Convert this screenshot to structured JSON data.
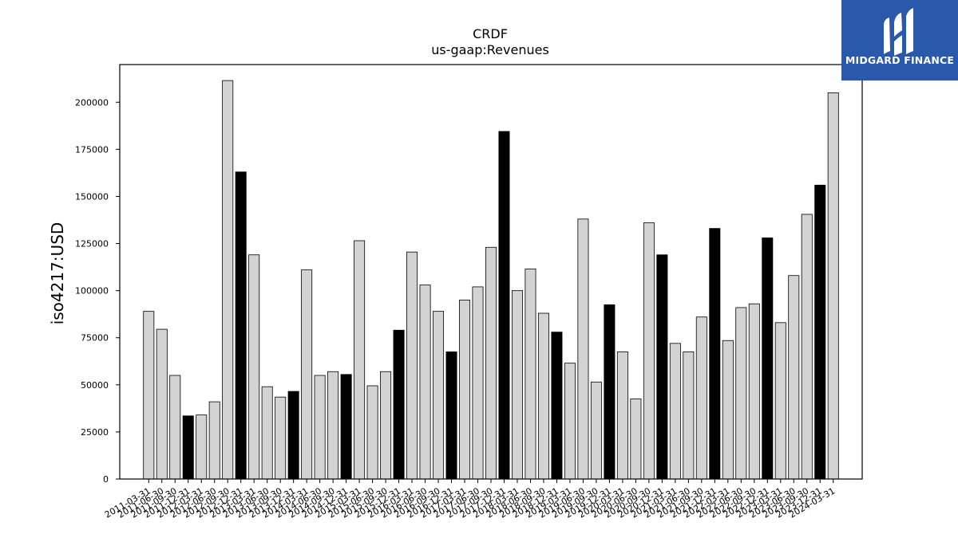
{
  "logo": {
    "text": "MIDGARD FINANCE",
    "icon": "midgard-logo-icon",
    "color": "#2a59ab"
  },
  "chart_data": {
    "type": "bar",
    "title": "CRDF",
    "subtitle": "us-gaap:Revenues",
    "xlabel": "",
    "ylabel": "iso4217:USD",
    "ylim": [
      0,
      220000
    ],
    "yticks": [
      0,
      25000,
      50000,
      75000,
      100000,
      125000,
      150000,
      175000,
      200000
    ],
    "grid": false,
    "colors": {
      "quarter": "#d3d3d3",
      "year_end": "#000000",
      "edge": "#000000"
    },
    "categories": [
      "2011-03-31",
      "2011-06-30",
      "2011-09-30",
      "2011-12-31",
      "2012-03-31",
      "2012-06-30",
      "2012-09-30",
      "2012-12-31",
      "2013-03-31",
      "2013-06-30",
      "2013-09-30",
      "2013-12-31",
      "2014-03-31",
      "2014-06-30",
      "2014-09-30",
      "2014-12-31",
      "2015-03-31",
      "2015-06-30",
      "2015-09-30",
      "2015-12-31",
      "2016-03-31",
      "2016-06-30",
      "2016-09-30",
      "2016-12-31",
      "2017-03-31",
      "2017-06-30",
      "2017-09-30",
      "2017-12-31",
      "2018-03-31",
      "2018-06-30",
      "2018-09-30",
      "2018-12-31",
      "2019-03-31",
      "2019-06-30",
      "2019-09-30",
      "2019-12-31",
      "2020-03-31",
      "2020-06-30",
      "2020-09-30",
      "2020-12-31",
      "2021-03-31",
      "2021-06-30",
      "2021-09-30",
      "2021-12-31",
      "2022-03-31",
      "2022-06-30",
      "2022-09-30",
      "2022-12-31",
      "2023-03-31",
      "2023-06-30",
      "2023-09-30",
      "2023-12-31",
      "2024-03-31"
    ],
    "tick_labels": [
      "2011-03-31",
      "2011-06-30",
      "2011-09-30",
      "2011-12-31",
      "2012-03-31",
      "2012-06-30",
      "2012-09-30",
      "2012-12-31",
      "2013-03-31",
      "2013-06-30",
      "2013-09-30",
      "2013-12-31",
      "2014-03-31",
      "2014-06-30",
      "2014-09-30",
      "2014-12-31",
      "2015-03-31",
      "2015-06-30",
      "2015-09-30",
      "2015-12-31",
      "2016-03-31",
      "2016-06-30",
      "2016-09-30",
      "2016-12-31",
      "2017-03-31",
      "2017-06-30",
      "2017-09-30",
      "2017-12-31",
      "2018-03-31",
      "2018-06-30",
      "2018-09-30",
      "2018-12-31",
      "2019-03-31",
      "2019-06-30",
      "2019-09-30",
      "2019-12-31",
      "2020-03-31",
      "2020-06-30",
      "2020-09-30",
      "2020-12-31",
      "2021-03-31",
      "2021-06-30",
      "2021-09-30",
      "2021-12-31",
      "2022-03-31",
      "2022-06-30",
      "2022-09-30",
      "2022-12-31",
      "2023-03-31",
      "2023-06-30",
      "2023-09-30",
      "2023-12-31",
      "2024-03-31"
    ],
    "values": [
      89000,
      79500,
      55000,
      33500,
      34000,
      41000,
      211500,
      163000,
      119000,
      49000,
      43500,
      46500,
      111000,
      55000,
      57000,
      55500,
      126500,
      49500,
      57000,
      79000,
      120500,
      103000,
      89000,
      67500,
      95000,
      102000,
      123000,
      184500,
      100000,
      111500,
      88000,
      78000,
      61500,
      138000,
      51500,
      92500,
      67500,
      42500,
      136000,
      119000,
      72000,
      67500,
      86000,
      133000,
      73500,
      91000,
      93000,
      128000,
      83000,
      108000,
      140500,
      156000,
      205000
    ],
    "is_year_end": [
      false,
      false,
      false,
      true,
      false,
      false,
      false,
      true,
      false,
      false,
      false,
      true,
      false,
      false,
      false,
      true,
      false,
      false,
      false,
      true,
      false,
      false,
      false,
      true,
      false,
      false,
      false,
      true,
      false,
      false,
      false,
      true,
      false,
      false,
      false,
      true,
      false,
      false,
      false,
      true,
      false,
      false,
      false,
      true,
      false,
      false,
      false,
      true,
      false,
      false,
      false,
      true,
      false
    ]
  }
}
